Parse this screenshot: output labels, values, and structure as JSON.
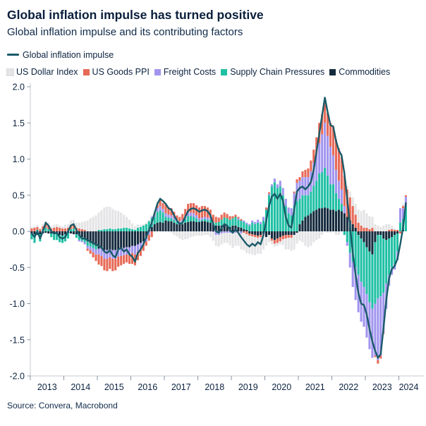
{
  "header": {
    "title": "Global inflation impulse has turned positive",
    "subtitle": "Global inflation impulse and its contributing factors"
  },
  "legend": {
    "line": {
      "label": "Global inflation impulse",
      "color": "#1a5a68"
    },
    "factors": [
      {
        "label": "US Dollar Index",
        "color": "#e4e4e6"
      },
      {
        "label": "US Goods PPI",
        "color": "#e76a57"
      },
      {
        "label": "Freight Costs",
        "color": "#a195ee"
      },
      {
        "label": "Supply Chain Pressures",
        "color": "#1fc0a4"
      },
      {
        "label": "Commodities",
        "color": "#152a3d"
      }
    ]
  },
  "source": "Source: Convera, Macrobond",
  "chart_data": {
    "type": "bar",
    "subtype": "stacked-bars-with-line",
    "x_start": "2013-01",
    "x_end": "2024-03",
    "months": 135,
    "x_tick_labels": [
      "2013",
      "2014",
      "2015",
      "2016",
      "2017",
      "2018",
      "2019",
      "2020",
      "2021",
      "2022",
      "2023",
      "2024"
    ],
    "y_tick_labels": [
      "2.0",
      "1.5",
      "1.0",
      "0.5",
      "0.0",
      "-0.5",
      "-1.0",
      "-1.5",
      "-2.0"
    ],
    "ylim": [
      -2.0,
      2.0
    ],
    "grid": false,
    "legend_position": "top",
    "stack_note": "bars stacked outward from zero in series order below; line overlays total impulse",
    "line_series": {
      "name": "Global inflation impulse",
      "color": "#1a5a68",
      "values": [
        -0.03,
        -0.08,
        0.0,
        -0.1,
        0.0,
        0.12,
        0.08,
        0.0,
        -0.03,
        -0.02,
        -0.08,
        -0.1,
        -0.08,
        0.0,
        0.08,
        0.1,
        0.02,
        -0.05,
        -0.1,
        -0.1,
        -0.12,
        -0.14,
        -0.16,
        -0.18,
        -0.2,
        -0.22,
        -0.28,
        -0.3,
        -0.26,
        -0.33,
        -0.36,
        -0.25,
        -0.23,
        -0.28,
        -0.25,
        -0.32,
        -0.35,
        -0.42,
        -0.3,
        -0.25,
        -0.18,
        -0.08,
        0.02,
        0.12,
        0.25,
        0.38,
        0.45,
        0.42,
        0.38,
        0.32,
        0.3,
        0.22,
        0.15,
        0.1,
        0.12,
        0.2,
        0.28,
        0.31,
        0.32,
        0.3,
        0.27,
        0.29,
        0.3,
        0.28,
        0.22,
        0.1,
        0.0,
        -0.02,
        0.05,
        0.1,
        0.08,
        0.02,
        -0.02,
        0.03,
        -0.02,
        -0.08,
        -0.13,
        -0.18,
        -0.21,
        -0.17,
        -0.2,
        -0.15,
        -0.18,
        -0.05,
        0.15,
        0.35,
        0.48,
        0.52,
        0.45,
        0.52,
        0.42,
        0.2,
        0.08,
        0.05,
        0.3,
        0.55,
        0.6,
        0.62,
        0.58,
        0.62,
        0.68,
        0.85,
        1.1,
        1.35,
        1.6,
        1.85,
        1.65,
        1.47,
        1.45,
        1.25,
        1.12,
        1.05,
        0.8,
        0.45,
        0.08,
        -0.3,
        -0.6,
        -0.85,
        -1.0,
        -1.02,
        -1.15,
        -1.35,
        -1.52,
        -1.65,
        -1.75,
        -1.7,
        -1.34,
        -0.95,
        -0.65,
        -0.52,
        -0.48,
        -0.38,
        -0.18,
        0.05,
        0.39
      ]
    },
    "series": [
      {
        "name": "Commodities",
        "color": "#152a3d",
        "values": [
          -0.03,
          -0.04,
          -0.05,
          -0.04,
          -0.03,
          -0.02,
          -0.03,
          -0.03,
          -0.04,
          -0.04,
          -0.05,
          -0.06,
          -0.04,
          -0.02,
          -0.03,
          -0.04,
          -0.04,
          -0.06,
          -0.08,
          -0.1,
          -0.14,
          -0.16,
          -0.18,
          -0.2,
          -0.24,
          -0.24,
          -0.26,
          -0.26,
          -0.25,
          -0.26,
          -0.26,
          -0.25,
          -0.24,
          -0.23,
          -0.22,
          -0.22,
          -0.2,
          -0.2,
          -0.18,
          -0.16,
          -0.14,
          -0.1,
          0.02,
          0.06,
          0.1,
          0.12,
          0.13,
          0.12,
          0.15,
          0.14,
          0.14,
          0.12,
          0.1,
          0.1,
          0.1,
          0.12,
          0.13,
          0.14,
          0.14,
          0.13,
          0.13,
          0.14,
          0.14,
          0.13,
          0.12,
          0.1,
          0.08,
          0.08,
          0.08,
          0.09,
          0.08,
          0.06,
          0.08,
          0.08,
          0.06,
          0.05,
          0.03,
          0.02,
          -0.03,
          -0.04,
          -0.05,
          -0.06,
          -0.05,
          -0.03,
          -0.08,
          -0.05,
          -0.1,
          -0.12,
          -0.1,
          -0.08,
          -0.06,
          -0.05,
          -0.05,
          -0.05,
          -0.05,
          -0.02,
          0.1,
          0.15,
          0.2,
          0.22,
          0.25,
          0.28,
          0.3,
          0.32,
          0.32,
          0.33,
          0.32,
          0.3,
          0.3,
          0.28,
          0.3,
          0.28,
          0.25,
          0.2,
          0.15,
          0.1,
          0.05,
          -0.05,
          -0.1,
          -0.15,
          -0.22,
          -0.28,
          -0.32,
          -0.15,
          -0.05,
          -0.05,
          -0.1,
          -0.12,
          -0.1,
          -0.08,
          -0.05,
          -0.03,
          0.0,
          0.02,
          0.0
        ]
      },
      {
        "name": "Supply Chain Pressures",
        "color": "#1fc0a4",
        "values": [
          -0.08,
          -0.12,
          0.02,
          -0.1,
          0.03,
          0.05,
          0.03,
          -0.05,
          -0.08,
          -0.08,
          -0.1,
          -0.1,
          -0.1,
          -0.08,
          0.03,
          0.04,
          -0.05,
          -0.06,
          -0.05,
          -0.05,
          -0.06,
          -0.05,
          -0.05,
          -0.05,
          0.02,
          0.02,
          0.03,
          0.03,
          0.04,
          0.03,
          0.03,
          0.04,
          0.04,
          0.05,
          0.05,
          0.04,
          0.03,
          0.02,
          0.05,
          0.06,
          0.08,
          0.1,
          0.12,
          0.12,
          0.1,
          0.15,
          0.16,
          0.14,
          0.05,
          0.05,
          0.04,
          0.04,
          0.03,
          0.02,
          0.03,
          0.05,
          0.08,
          0.07,
          0.06,
          0.05,
          0.02,
          0.02,
          0.03,
          0.03,
          0.04,
          0.03,
          0.04,
          0.05,
          0.08,
          0.1,
          0.1,
          0.1,
          0.1,
          0.12,
          0.1,
          0.1,
          0.1,
          0.08,
          0.08,
          0.12,
          0.1,
          0.12,
          0.1,
          0.15,
          0.3,
          0.5,
          0.62,
          0.68,
          0.6,
          0.62,
          0.5,
          0.35,
          0.25,
          0.22,
          0.35,
          0.42,
          0.35,
          0.35,
          0.3,
          0.28,
          0.3,
          0.35,
          0.4,
          0.48,
          0.5,
          0.55,
          0.45,
          0.35,
          0.35,
          0.25,
          0.15,
          0.1,
          -0.05,
          -0.15,
          -0.3,
          -0.42,
          -0.5,
          -0.55,
          -0.6,
          -0.62,
          -0.65,
          -0.7,
          -0.75,
          -0.85,
          -0.88,
          -0.85,
          -0.75,
          -0.6,
          -0.5,
          -0.42,
          -0.4,
          -0.25,
          0.12,
          0.15,
          0.35
        ]
      },
      {
        "name": "Freight Costs",
        "color": "#a195ee",
        "values": [
          0.0,
          0.0,
          0.0,
          0.0,
          0.0,
          0.0,
          0.0,
          0.0,
          0.0,
          0.0,
          0.0,
          0.0,
          0.0,
          0.0,
          0.0,
          0.0,
          0.0,
          -0.02,
          -0.02,
          -0.03,
          -0.04,
          -0.05,
          -0.06,
          -0.07,
          -0.08,
          -0.1,
          -0.12,
          -0.12,
          -0.11,
          -0.12,
          -0.12,
          -0.1,
          -0.1,
          -0.1,
          -0.1,
          -0.11,
          -0.1,
          -0.12,
          -0.1,
          -0.08,
          -0.05,
          -0.04,
          -0.05,
          0.02,
          0.03,
          0.05,
          0.06,
          0.05,
          0.05,
          0.04,
          0.04,
          0.03,
          0.02,
          0.02,
          0.03,
          0.04,
          0.05,
          0.05,
          0.05,
          0.04,
          0.03,
          0.03,
          0.03,
          0.03,
          0.02,
          -0.01,
          -0.05,
          -0.05,
          -0.03,
          -0.02,
          -0.02,
          -0.02,
          -0.03,
          -0.02,
          0.02,
          -0.03,
          0.02,
          0.02,
          0.02,
          0.03,
          0.03,
          0.04,
          0.03,
          0.05,
          0.0,
          0.02,
          0.03,
          0.05,
          0.05,
          0.08,
          0.1,
          0.1,
          0.08,
          0.1,
          0.18,
          0.25,
          0.25,
          0.25,
          0.25,
          0.25,
          0.28,
          0.32,
          0.38,
          0.42,
          0.52,
          0.62,
          0.55,
          0.52,
          0.4,
          0.32,
          0.25,
          0.2,
          0.1,
          -0.05,
          -0.2,
          -0.35,
          -0.45,
          -0.52,
          -0.55,
          -0.55,
          -0.6,
          -0.65,
          -0.68,
          -0.72,
          -0.85,
          -0.82,
          -0.55,
          -0.35,
          -0.15,
          -0.1,
          -0.08,
          -0.12,
          0.2,
          0.15,
          0.13
        ]
      },
      {
        "name": "US Goods PPI",
        "color": "#e76a57",
        "values": [
          0.04,
          0.05,
          0.04,
          0.03,
          0.04,
          0.05,
          0.05,
          0.04,
          0.05,
          0.06,
          0.05,
          0.04,
          0.04,
          0.05,
          0.06,
          0.06,
          0.05,
          0.04,
          0.03,
          0.02,
          -0.03,
          -0.05,
          -0.07,
          -0.09,
          -0.14,
          -0.14,
          -0.16,
          -0.17,
          -0.16,
          -0.17,
          -0.16,
          -0.14,
          -0.13,
          -0.12,
          -0.11,
          -0.12,
          -0.15,
          -0.15,
          -0.12,
          -0.1,
          -0.08,
          -0.06,
          -0.08,
          -0.08,
          0.02,
          0.05,
          0.08,
          0.08,
          0.12,
          0.1,
          0.1,
          0.08,
          0.07,
          0.06,
          0.08,
          0.1,
          0.12,
          0.13,
          0.14,
          0.14,
          0.15,
          0.16,
          0.15,
          0.14,
          0.12,
          0.1,
          0.08,
          0.06,
          0.07,
          0.07,
          0.06,
          0.05,
          0.03,
          0.03,
          0.02,
          0.02,
          -0.02,
          -0.04,
          -0.03,
          -0.03,
          -0.03,
          -0.03,
          -0.03,
          -0.02,
          0.03,
          0.02,
          -0.03,
          -0.05,
          -0.06,
          -0.06,
          -0.05,
          -0.05,
          -0.04,
          -0.04,
          0.02,
          0.05,
          0.05,
          0.08,
          0.1,
          0.12,
          0.15,
          0.18,
          0.22,
          0.28,
          0.28,
          0.33,
          0.32,
          0.33,
          0.4,
          0.42,
          0.45,
          0.45,
          0.42,
          0.38,
          0.32,
          0.25,
          0.18,
          0.12,
          0.08,
          0.05,
          0.05,
          0.03,
          0.05,
          -0.02,
          -0.05,
          -0.04,
          -0.02,
          0.0,
          0.02,
          0.03,
          0.02,
          0.02,
          -0.03,
          0.03,
          0.02
        ]
      },
      {
        "name": "US Dollar Index",
        "color": "#e4e4e6",
        "values": [
          0.02,
          0.02,
          0.03,
          0.02,
          0.03,
          0.04,
          0.04,
          0.03,
          0.04,
          0.04,
          0.03,
          0.03,
          0.05,
          0.05,
          0.06,
          0.06,
          0.07,
          0.08,
          0.1,
          0.12,
          0.15,
          0.18,
          0.2,
          0.22,
          0.24,
          0.27,
          0.3,
          0.31,
          0.3,
          0.28,
          0.26,
          0.24,
          0.22,
          0.18,
          0.15,
          0.12,
          0.08,
          0.05,
          0.04,
          0.03,
          0.02,
          0.02,
          0.02,
          0.02,
          0.03,
          0.04,
          0.04,
          0.04,
          0.02,
          0.0,
          -0.02,
          -0.05,
          -0.07,
          -0.1,
          -0.12,
          -0.11,
          -0.1,
          -0.08,
          -0.07,
          -0.06,
          -0.06,
          -0.06,
          -0.05,
          -0.05,
          -0.08,
          -0.12,
          -0.15,
          -0.16,
          -0.15,
          -0.14,
          -0.14,
          -0.17,
          -0.2,
          -0.18,
          -0.2,
          -0.22,
          -0.24,
          -0.26,
          -0.25,
          -0.25,
          -0.25,
          -0.22,
          -0.23,
          -0.2,
          -0.12,
          -0.1,
          -0.05,
          -0.04,
          -0.04,
          -0.04,
          -0.08,
          -0.15,
          -0.16,
          -0.18,
          -0.2,
          -0.15,
          -0.13,
          -0.15,
          -0.2,
          -0.22,
          -0.2,
          -0.15,
          -0.12,
          -0.1,
          -0.05,
          0.02,
          -0.02,
          -0.02,
          0.02,
          -0.05,
          -0.05,
          0.05,
          0.08,
          0.05,
          0.08,
          0.12,
          0.15,
          0.18,
          0.2,
          0.25,
          0.2,
          0.18,
          0.15,
          0.1,
          0.08,
          0.06,
          0.08,
          0.1,
          0.08,
          0.05,
          0.02,
          0.0,
          0.0,
          0.03,
          0.0
        ]
      }
    ]
  }
}
